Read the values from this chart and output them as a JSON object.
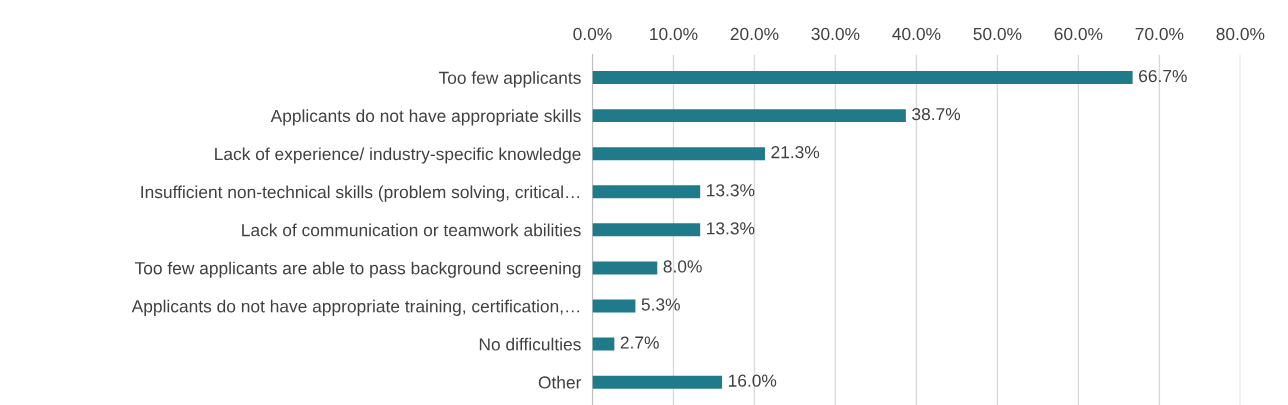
{
  "chart_data": {
    "type": "bar",
    "orientation": "horizontal",
    "categories": [
      "Too few applicants",
      "Applicants do not have appropriate skills",
      "Lack of experience/ industry-specific knowledge",
      "Insufficient non-technical skills (problem solving, critical…",
      "Lack of communication or teamwork abilities",
      "Too few applicants are able to pass background screening",
      "Applicants do not have appropriate training, certification,…",
      "No difficulties",
      "Other"
    ],
    "values": [
      66.7,
      38.7,
      21.3,
      13.3,
      13.3,
      8.0,
      5.3,
      2.7,
      16.0
    ],
    "value_labels": [
      "66.7%",
      "38.7%",
      "21.3%",
      "13.3%",
      "13.3%",
      "8.0%",
      "5.3%",
      "2.7%",
      "16.0%"
    ],
    "color": "#1f7b8a",
    "xlim": [
      0,
      80
    ],
    "xticks": [
      {
        "value": 0,
        "label": "0.0%"
      },
      {
        "value": 10,
        "label": "10.0%"
      },
      {
        "value": 20,
        "label": "20.0%"
      },
      {
        "value": 30,
        "label": "30.0%"
      },
      {
        "value": 40,
        "label": "40.0%"
      },
      {
        "value": 50,
        "label": "50.0%"
      },
      {
        "value": 60,
        "label": "60.0%"
      },
      {
        "value": 70,
        "label": "70.0%"
      },
      {
        "value": 80,
        "label": "80.0%"
      }
    ],
    "grid": "x",
    "legend": false
  }
}
